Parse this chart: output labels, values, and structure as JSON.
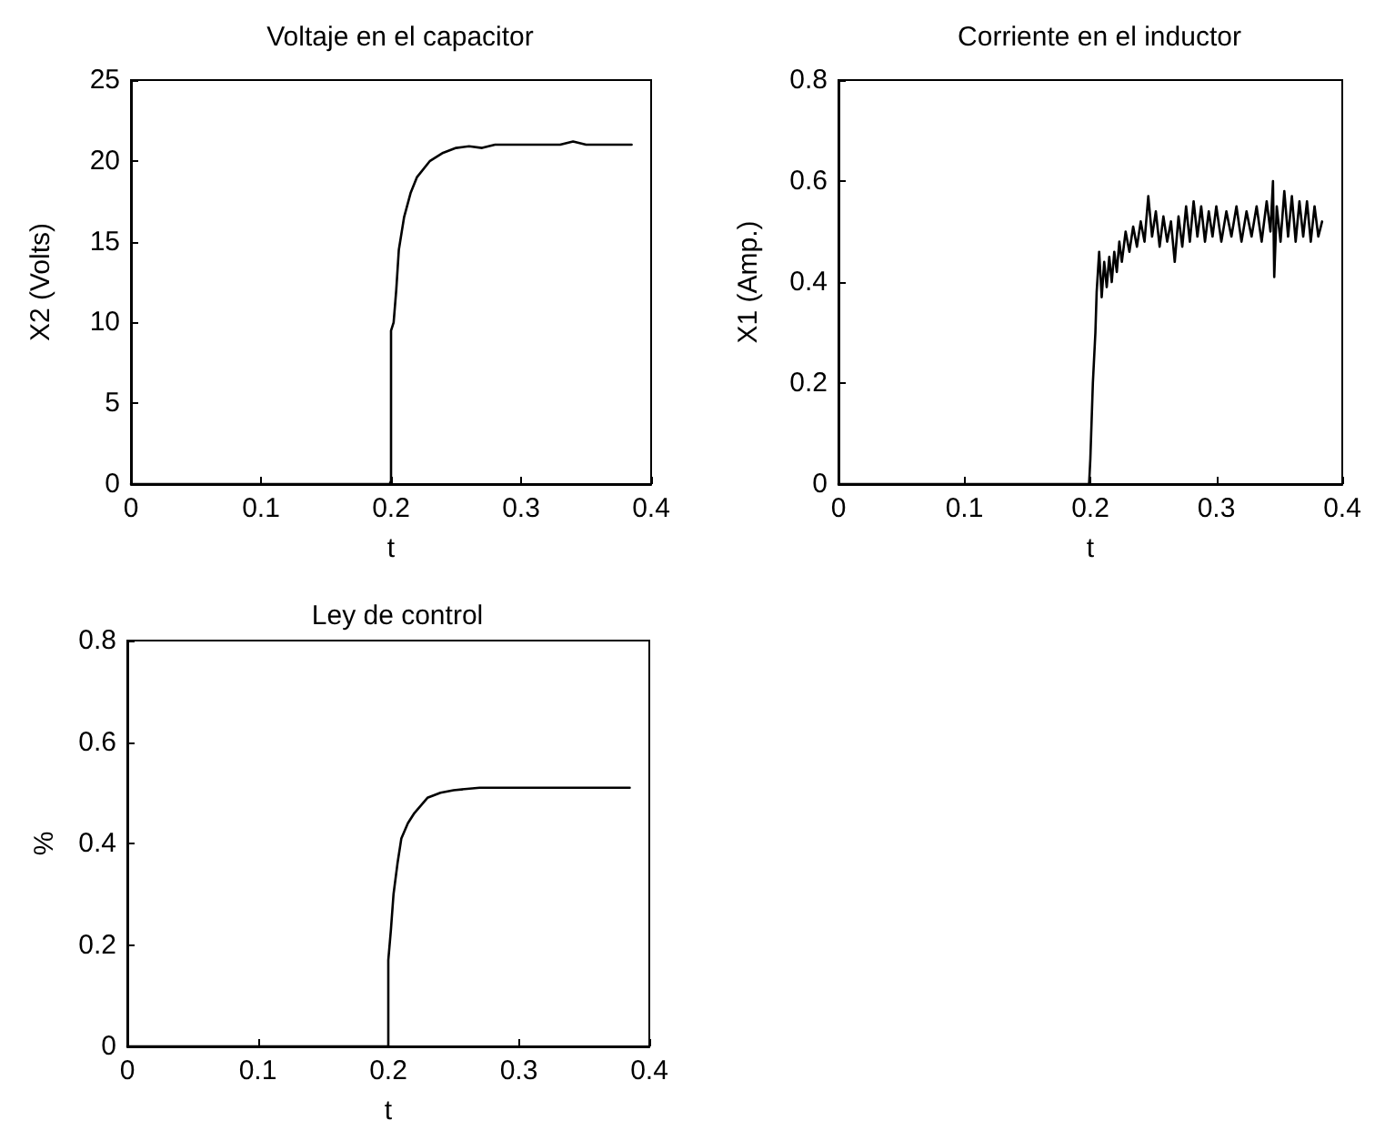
{
  "chart_data": [
    {
      "type": "line",
      "title": "Voltaje en el capacitor",
      "xlabel": "t",
      "ylabel": "X2 (Volts)",
      "xlim": [
        0,
        0.4
      ],
      "xticks": [
        0,
        0.1,
        0.2,
        0.3,
        0.4
      ],
      "ylim": [
        0,
        25
      ],
      "yticks": [
        0,
        5,
        10,
        15,
        20,
        25
      ],
      "grid": false,
      "marker": "none",
      "line_style": "solid",
      "series": [
        {
          "color": "#000000",
          "x": [
            0,
            0.1,
            0.199,
            0.2,
            0.2,
            0.202,
            0.204,
            0.206,
            0.21,
            0.215,
            0.22,
            0.23,
            0.24,
            0.25,
            0.26,
            0.27,
            0.28,
            0.3,
            0.33,
            0.34,
            0.35,
            0.385
          ],
          "values": [
            0,
            0,
            0,
            0.2,
            9.5,
            10,
            12,
            14.5,
            16.5,
            18,
            19,
            20,
            20.5,
            20.8,
            20.9,
            20.8,
            21,
            21,
            21,
            21.2,
            21,
            21
          ]
        }
      ]
    },
    {
      "type": "line",
      "title": "Corriente en el inductor",
      "xlabel": "t",
      "ylabel": "X1 (Amp.)",
      "xlim": [
        0,
        0.4
      ],
      "xticks": [
        0,
        0.1,
        0.2,
        0.3,
        0.4
      ],
      "ylim": [
        0,
        0.8
      ],
      "yticks": [
        0,
        0.2,
        0.4,
        0.6,
        0.8
      ],
      "grid": false,
      "marker": "none",
      "line_style": "solid",
      "series": [
        {
          "color": "#000000",
          "x": [
            0,
            0.1,
            0.199,
            0.2,
            0.202,
            0.204,
            0.205,
            0.207,
            0.209,
            0.211,
            0.213,
            0.215,
            0.217,
            0.219,
            0.221,
            0.223,
            0.225,
            0.228,
            0.231,
            0.234,
            0.237,
            0.24,
            0.243,
            0.246,
            0.249,
            0.252,
            0.255,
            0.258,
            0.261,
            0.264,
            0.267,
            0.27,
            0.273,
            0.276,
            0.279,
            0.282,
            0.285,
            0.288,
            0.291,
            0.294,
            0.297,
            0.3,
            0.304,
            0.308,
            0.312,
            0.316,
            0.32,
            0.324,
            0.328,
            0.332,
            0.336,
            0.34,
            0.343,
            0.345,
            0.346,
            0.348,
            0.351,
            0.354,
            0.357,
            0.36,
            0.363,
            0.366,
            0.369,
            0.372,
            0.375,
            0.378,
            0.381,
            0.384
          ],
          "values": [
            0,
            0,
            0,
            0.05,
            0.2,
            0.3,
            0.38,
            0.46,
            0.37,
            0.44,
            0.39,
            0.45,
            0.4,
            0.46,
            0.42,
            0.48,
            0.44,
            0.5,
            0.46,
            0.51,
            0.47,
            0.52,
            0.48,
            0.57,
            0.49,
            0.54,
            0.47,
            0.53,
            0.48,
            0.52,
            0.44,
            0.53,
            0.47,
            0.55,
            0.48,
            0.56,
            0.49,
            0.55,
            0.48,
            0.54,
            0.49,
            0.55,
            0.48,
            0.54,
            0.49,
            0.55,
            0.48,
            0.54,
            0.49,
            0.55,
            0.48,
            0.56,
            0.5,
            0.6,
            0.41,
            0.55,
            0.48,
            0.58,
            0.49,
            0.57,
            0.48,
            0.56,
            0.49,
            0.56,
            0.48,
            0.55,
            0.49,
            0.52
          ]
        }
      ]
    },
    {
      "type": "line",
      "title": "Ley de control",
      "xlabel": "t",
      "ylabel": "%",
      "xlim": [
        0,
        0.4
      ],
      "xticks": [
        0,
        0.1,
        0.2,
        0.3,
        0.4
      ],
      "ylim": [
        0,
        0.8
      ],
      "yticks": [
        0,
        0.2,
        0.4,
        0.6,
        0.8
      ],
      "grid": false,
      "marker": "none",
      "line_style": "solid",
      "series": [
        {
          "color": "#000000",
          "x": [
            0,
            0.1,
            0.199,
            0.2,
            0.2,
            0.202,
            0.204,
            0.207,
            0.21,
            0.215,
            0.22,
            0.23,
            0.24,
            0.25,
            0.27,
            0.3,
            0.385
          ],
          "values": [
            0,
            0,
            0,
            0,
            0.17,
            0.23,
            0.3,
            0.36,
            0.41,
            0.44,
            0.46,
            0.49,
            0.5,
            0.505,
            0.51,
            0.51,
            0.51
          ]
        }
      ]
    }
  ]
}
